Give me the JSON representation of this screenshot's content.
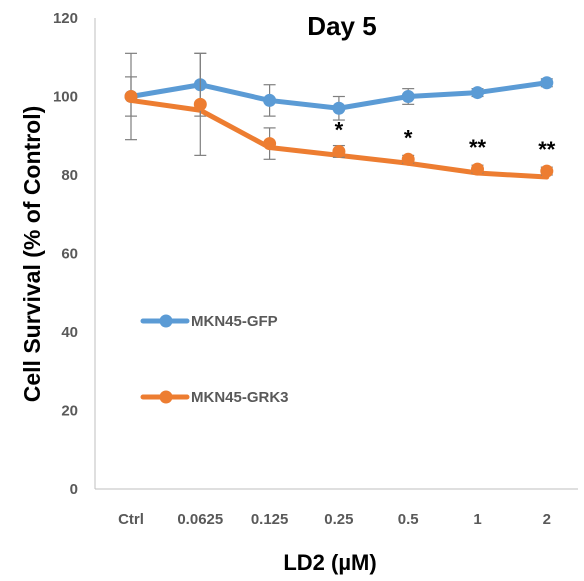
{
  "chart_data": {
    "type": "line",
    "title": "Day 5",
    "xlabel": "LD2 (µM)",
    "ylabel": "Cell Survival (% of Control)",
    "categories": [
      "Ctrl",
      "0.0625",
      "0.125",
      "0.25",
      "0.5",
      "1",
      "2"
    ],
    "ylim": [
      0,
      120
    ],
    "yticks": [
      "0",
      "20",
      "40",
      "60",
      "80",
      "100",
      "120"
    ],
    "grid": false,
    "legend_position": "left-middle",
    "series": [
      {
        "name": "MKN45-GFP",
        "color": "#5B9BD5",
        "values": [
          100,
          103,
          99,
          97,
          100,
          101,
          103.5
        ],
        "errors": [
          11,
          8,
          4,
          3,
          2,
          1,
          1
        ]
      },
      {
        "name": "MKN45-GRK3",
        "color": "#ED7D31",
        "values": [
          100,
          98,
          88,
          86,
          84,
          81.5,
          81
        ],
        "errors": [
          5,
          13,
          4,
          1.5,
          1,
          1,
          1
        ],
        "trend": [
          99,
          96.5,
          87,
          85,
          83,
          80.5,
          79.5
        ]
      }
    ],
    "annotations": [
      "",
      "",
      "",
      "*",
      "*",
      "**",
      "**"
    ]
  }
}
